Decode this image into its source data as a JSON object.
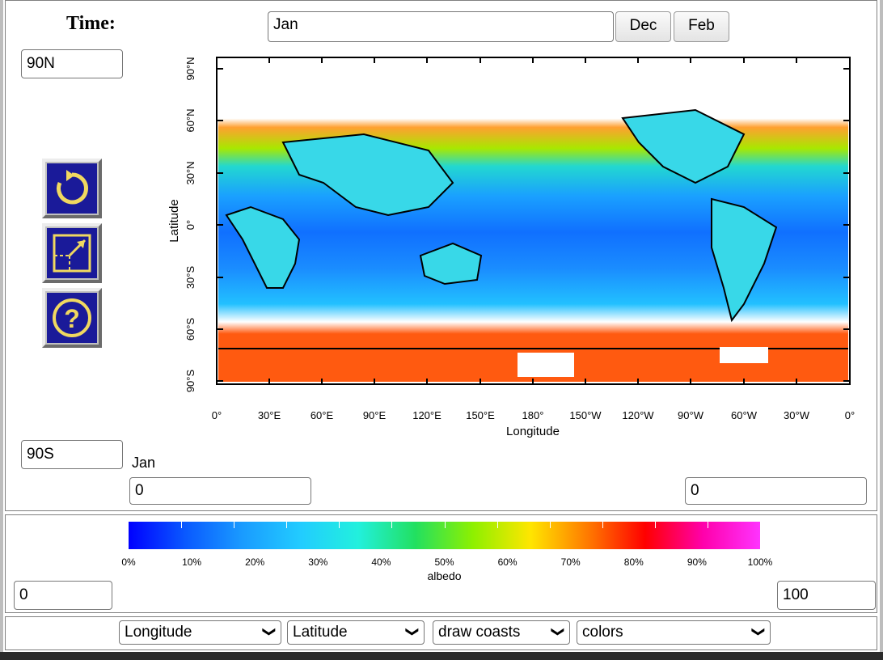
{
  "time": {
    "label": "Time:",
    "value": "Jan",
    "prev_label": "Dec",
    "next_label": "Feb"
  },
  "lat_top": "90N",
  "lat_bottom": "90S",
  "month_label": "Jan",
  "lon_min": "0",
  "lon_max": "0",
  "map": {
    "xlabel": "Longitude",
    "ylabel": "Latitude",
    "xticks": [
      "0°",
      "30°E",
      "60°E",
      "90°E",
      "120°E",
      "150°E",
      "180°",
      "150°W",
      "120°W",
      "90°W",
      "60°W",
      "30°W",
      "0°"
    ],
    "yticks": [
      "90°N",
      "60°N",
      "30°N",
      "0°",
      "30°S",
      "60°S",
      "90°S"
    ]
  },
  "colorbar": {
    "ticks": [
      "0%",
      "10%",
      "20%",
      "30%",
      "40%",
      "50%",
      "60%",
      "70%",
      "80%",
      "90%",
      "100%"
    ],
    "label": "albedo",
    "min": "0",
    "max": "100",
    "colors": [
      "#0000ff",
      "#0a5aff",
      "#1a9cff",
      "#22ccff",
      "#22f0dd",
      "#22e060",
      "#8ef000",
      "#ffe600",
      "#ff7a00",
      "#ff0000",
      "#ff00aa",
      "#ff33ff"
    ]
  },
  "toolbar": {
    "x_axis": "Longitude",
    "y_axis": "Latitude",
    "coasts": "draw coasts",
    "colors": "colors"
  },
  "icons": {
    "reset": "reset-icon",
    "zoom": "zoom-icon",
    "help": "help-icon"
  }
}
